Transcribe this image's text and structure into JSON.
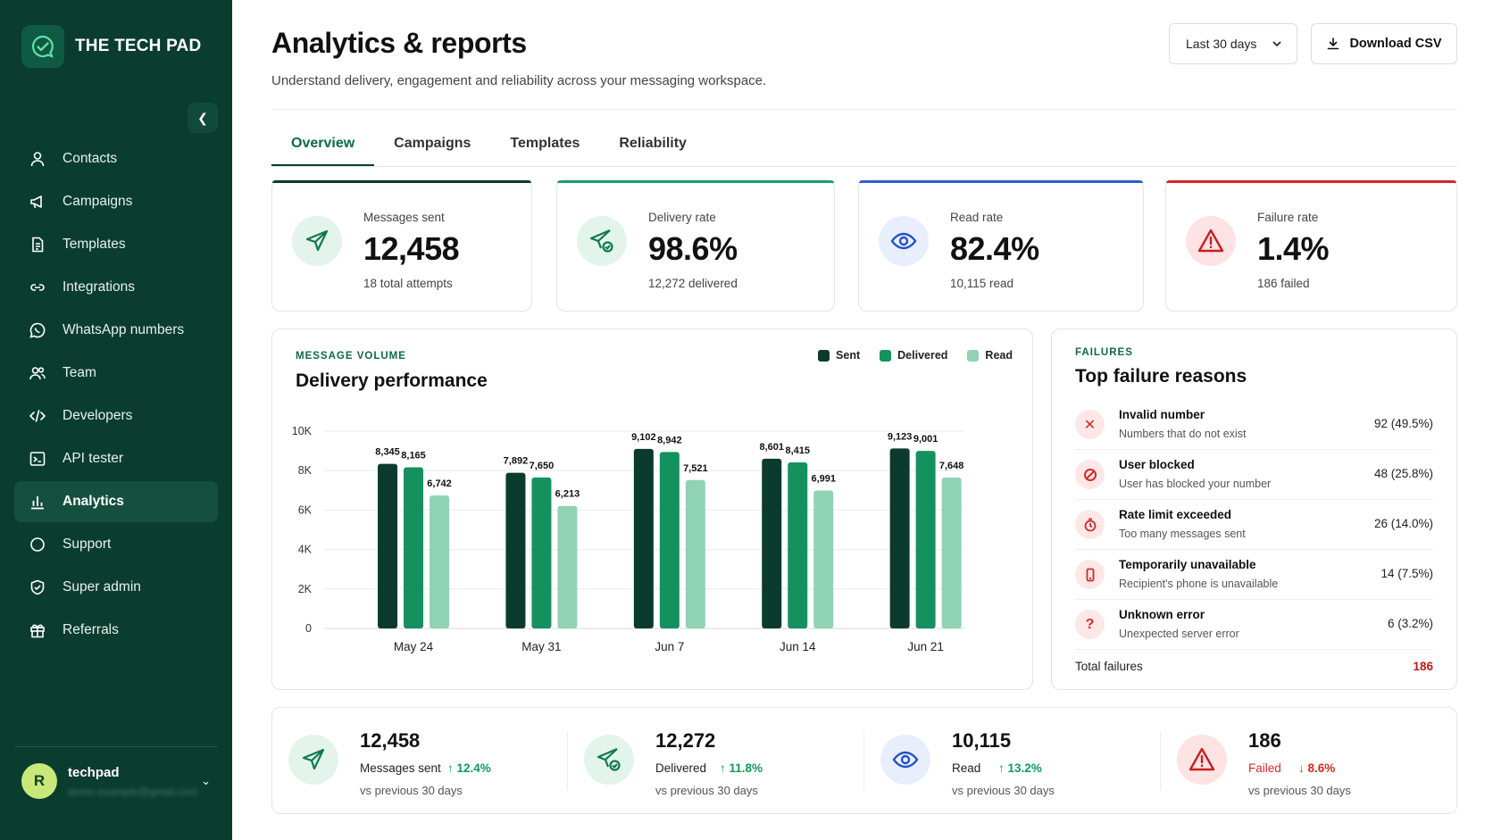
{
  "brand": {
    "name": "THE TECH PAD"
  },
  "nav": [
    {
      "label": "Contacts",
      "icon": "user-icon"
    },
    {
      "label": "Campaigns",
      "icon": "megaphone-icon"
    },
    {
      "label": "Templates",
      "icon": "document-icon"
    },
    {
      "label": "Integrations",
      "icon": "link-icon"
    },
    {
      "label": "WhatsApp numbers",
      "icon": "whatsapp-icon"
    },
    {
      "label": "Team",
      "icon": "team-icon"
    },
    {
      "label": "Developers",
      "icon": "code-icon"
    },
    {
      "label": "API tester",
      "icon": "terminal-icon"
    },
    {
      "label": "Analytics",
      "icon": "bar-chart-icon",
      "active": true
    },
    {
      "label": "Support",
      "icon": "circle-icon"
    },
    {
      "label": "Super admin",
      "icon": "shield-icon"
    },
    {
      "label": "Referrals",
      "icon": "gift-icon"
    }
  ],
  "user": {
    "initial": "R",
    "name": "techpad",
    "email": "demo.example@gmail.com"
  },
  "header": {
    "title": "Analytics & reports",
    "subtitle": "Understand delivery, engagement and reliability across your messaging workspace.",
    "range_label": "Last 30 days",
    "download_label": "Download CSV"
  },
  "tabs": [
    "Overview",
    "Campaigns",
    "Templates",
    "Reliability"
  ],
  "kpis": [
    {
      "label": "Messages sent",
      "value": "12,458",
      "sub": "18 total attempts",
      "accent": "#0a3d2e"
    },
    {
      "label": "Delivery rate",
      "value": "98.6%",
      "sub": "12,272 delivered",
      "accent": "#14a36a"
    },
    {
      "label": "Read rate",
      "value": "82.4%",
      "sub": "10,115 read",
      "accent": "#2f5fd0"
    },
    {
      "label": "Failure rate",
      "value": "1.4%",
      "sub": "186 failed",
      "accent": "#d62828"
    }
  ],
  "chart_card": {
    "kicker": "MESSAGE VOLUME",
    "title": "Delivery performance"
  },
  "chart_data": {
    "type": "bar",
    "categories": [
      "May 24",
      "May 31",
      "Jun 7",
      "Jun 14",
      "Jun 21"
    ],
    "series": [
      {
        "name": "Sent",
        "color": "#0b3b2c",
        "values": [
          8345,
          7892,
          9102,
          8601,
          9123
        ]
      },
      {
        "name": "Delivered",
        "color": "#13925f",
        "values": [
          8165,
          7650,
          8942,
          8415,
          9001
        ]
      },
      {
        "name": "Read",
        "color": "#8fd3b4",
        "values": [
          6742,
          6213,
          7521,
          6991,
          7648
        ]
      }
    ],
    "yticks": [
      "0",
      "2K",
      "4K",
      "6K",
      "8K",
      "10K"
    ],
    "ylim": [
      0,
      10000
    ],
    "legend": "top-right",
    "grid": true
  },
  "failures": {
    "kicker": "FAILURES",
    "title": "Top failure reasons",
    "items": [
      {
        "name": "Invalid number",
        "desc": "Numbers that do not exist",
        "count": "92 (49.5%)",
        "icon": "x-icon"
      },
      {
        "name": "User blocked",
        "desc": "User has blocked your number",
        "count": "48 (25.8%)",
        "icon": "blocked-icon"
      },
      {
        "name": "Rate limit exceeded",
        "desc": "Too many messages sent",
        "count": "26 (14.0%)",
        "icon": "timer-icon"
      },
      {
        "name": "Temporarily unavailable",
        "desc": "Recipient's phone is unavailable",
        "count": "14 (7.5%)",
        "icon": "phone-icon"
      },
      {
        "name": "Unknown error",
        "desc": "Unexpected server error",
        "count": "6 (3.2%)",
        "icon": "question-icon"
      }
    ],
    "total_label": "Total failures",
    "total_value": "186"
  },
  "summary": [
    {
      "value": "12,458",
      "label": "Messages sent",
      "change": "12.4%",
      "direction": "up",
      "note": "vs previous 30 days"
    },
    {
      "value": "12,272",
      "label": "Delivered",
      "change": "11.8%",
      "direction": "up",
      "note": "vs previous 30 days"
    },
    {
      "value": "10,115",
      "label": "Read",
      "change": "13.2%",
      "direction": "up",
      "note": "vs previous 30 days"
    },
    {
      "value": "186",
      "label": "Failed",
      "change": "8.6%",
      "direction": "down",
      "note": "vs previous 30 days"
    }
  ]
}
